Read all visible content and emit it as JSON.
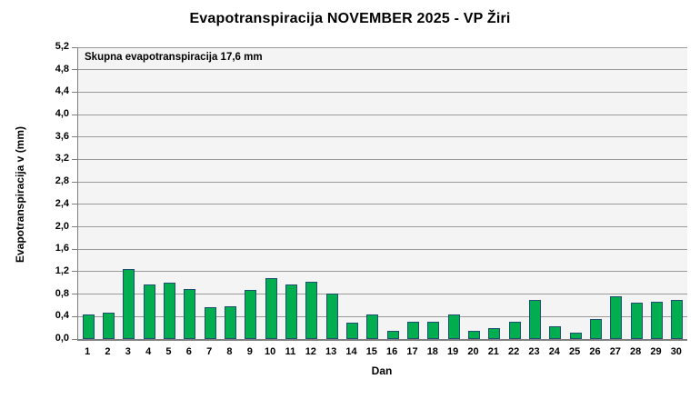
{
  "chart_data": {
    "type": "bar",
    "title": "Evapotranspiracija  NOVEMBER 2025 - VP Žiri",
    "xlabel": "Dan",
    "ylabel": "Evapotranspiracija v  (mm)",
    "annotation": "Skupna evapotranspiracija 17,6 mm",
    "total_evapotranspiration_mm": "17,6",
    "categories": [
      "1",
      "2",
      "3",
      "4",
      "5",
      "6",
      "7",
      "8",
      "9",
      "10",
      "11",
      "12",
      "13",
      "14",
      "15",
      "16",
      "17",
      "18",
      "19",
      "20",
      "21",
      "22",
      "23",
      "24",
      "25",
      "26",
      "27",
      "28",
      "29",
      "30"
    ],
    "values": [
      0.44,
      0.47,
      1.25,
      0.98,
      1.01,
      0.89,
      0.56,
      0.59,
      0.87,
      1.08,
      0.98,
      1.02,
      0.81,
      0.29,
      0.43,
      0.14,
      0.3,
      0.3,
      0.43,
      0.15,
      0.19,
      0.3,
      0.69,
      0.22,
      0.12,
      0.35,
      0.76,
      0.64,
      0.67,
      0.69
    ],
    "ylim": [
      0,
      5.2
    ],
    "ytick_step": 0.4,
    "ytick_labels": [
      "0,0",
      "0,4",
      "0,8",
      "1,2",
      "1,6",
      "2,0",
      "2,4",
      "2,8",
      "3,2",
      "3,6",
      "4,0",
      "4,4",
      "4,8",
      "5,2"
    ],
    "grid": true,
    "legend": null,
    "colors": {
      "bar_fill": "#00ae50",
      "bar_border": "#1f4e70",
      "gridline": "#9a9a9a",
      "axis": "#7f7f7f",
      "plot_background": "#f4f4f4",
      "figure_background": "#ffffff",
      "text": "#000000"
    }
  }
}
